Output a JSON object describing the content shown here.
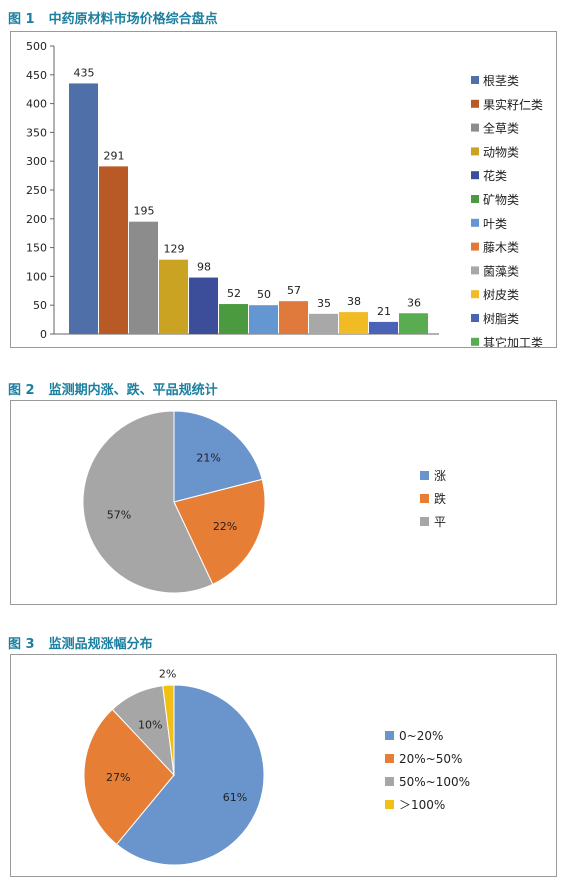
{
  "charts": [
    {
      "figure_num": "图 1",
      "title": "中药原材料市场价格综合盘点"
    },
    {
      "figure_num": "图 2",
      "title": "监测期内涨、跌、平品规统计"
    },
    {
      "figure_num": "图 3",
      "title": "监测品规涨幅分布"
    }
  ],
  "chart_data": [
    {
      "type": "bar",
      "title": "中药原材料市场价格综合盘点",
      "xlabel": "",
      "ylabel": "",
      "ylim": [
        0,
        500
      ],
      "yticks": [
        "0",
        "50",
        "100",
        "150",
        "200",
        "250",
        "300",
        "350",
        "400",
        "450",
        "500"
      ],
      "grid": false,
      "legend_position": "right",
      "categories": [
        "根茎类",
        "果实籽仁类",
        "全草类",
        "动物类",
        "花类",
        "矿物类",
        "叶类",
        "藤木类",
        "菌藻类",
        "树皮类",
        "树脂类",
        "其它加工类"
      ],
      "values": [
        435,
        291,
        195,
        129,
        98,
        52,
        50,
        57,
        35,
        38,
        21,
        36
      ],
      "data_labels": [
        "435",
        "291",
        "195",
        "129",
        "98",
        "52",
        "50",
        "57",
        "35",
        "38",
        "21",
        "36"
      ],
      "colors": [
        "#4f6fa8",
        "#b85a26",
        "#8c8c8c",
        "#c9a321",
        "#3c4d9a",
        "#4b9a3f",
        "#6496d2",
        "#e07a3c",
        "#a8a8a8",
        "#f0bb24",
        "#4a63b5",
        "#59ad50"
      ]
    },
    {
      "type": "pie",
      "title": "监测期内涨、跌、平品规统计",
      "legend_position": "right",
      "categories": [
        "涨",
        "跌",
        "平"
      ],
      "values": [
        21,
        22,
        57
      ],
      "data_labels": [
        "21%",
        "22%",
        "57%"
      ],
      "colors": [
        "#6a95cc",
        "#e67e36",
        "#a6a6a6"
      ]
    },
    {
      "type": "pie",
      "title": "监测品规涨幅分布",
      "legend_position": "right",
      "categories": [
        "0~20%",
        "20%~50%",
        "50%~100%",
        "＞100%"
      ],
      "values": [
        61,
        27,
        10,
        2
      ],
      "data_labels": [
        "61%",
        "27%",
        "10%",
        "2%"
      ],
      "colors": [
        "#6a95cc",
        "#e67e36",
        "#a6a6a6",
        "#f2c014"
      ]
    }
  ]
}
